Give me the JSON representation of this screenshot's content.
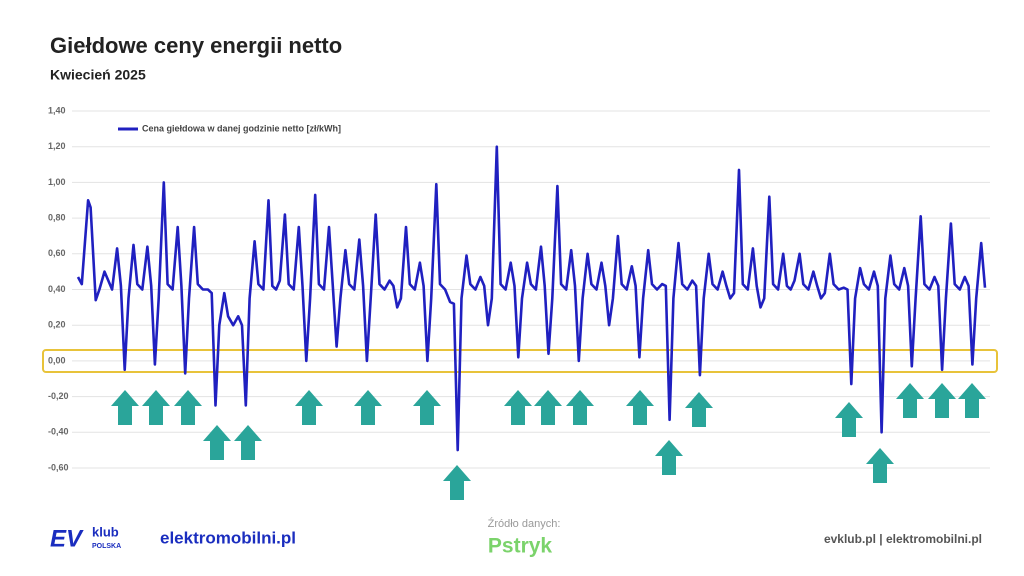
{
  "chart_data": {
    "type": "line",
    "title": "Giełdowe ceny energii netto",
    "subtitle": "Kwiecień 2025",
    "x": [
      0,
      3,
      8,
      10,
      14,
      17,
      21,
      27,
      31,
      34,
      37,
      40,
      44,
      47,
      51,
      55,
      58,
      61,
      64,
      68,
      71,
      75,
      79,
      82,
      85,
      88,
      92,
      95,
      99,
      103,
      106,
      109,
      112,
      116,
      119,
      123,
      127,
      130,
      133,
      136,
      140,
      143,
      147,
      151,
      154,
      157,
      160,
      164,
      167,
      171,
      175,
      178,
      181,
      184,
      188,
      191,
      195,
      199,
      202,
      205,
      208,
      212,
      215,
      219,
      223,
      226,
      229,
      232,
      236,
      239,
      243,
      247,
      250,
      253,
      256,
      260,
      263,
      267,
      271,
      274,
      277,
      280,
      284,
      287,
      291,
      295,
      298,
      301,
      304,
      308,
      311,
      315,
      319,
      322,
      325,
      328,
      332,
      335,
      339,
      343,
      346,
      349,
      352,
      356,
      359,
      363,
      367,
      370,
      373,
      376,
      380,
      383,
      387,
      391,
      394,
      397,
      400,
      404,
      407,
      411,
      415,
      418,
      421,
      424,
      428,
      431,
      435,
      439,
      442,
      445,
      448,
      452,
      455,
      459,
      463,
      466,
      469,
      472,
      476,
      479,
      483,
      487,
      490,
      493,
      496,
      500,
      503,
      507,
      511,
      514,
      517,
      520,
      524,
      527,
      531,
      535,
      538,
      541,
      544,
      548,
      551,
      555,
      559,
      562,
      565,
      568,
      572,
      575,
      579,
      583,
      586,
      589,
      592,
      596,
      599,
      603,
      607,
      610,
      613,
      616,
      620,
      623,
      627,
      631,
      634,
      637,
      640,
      644,
      647,
      651,
      655,
      658,
      661,
      664,
      668,
      671,
      675,
      679,
      682,
      685,
      688,
      692,
      695,
      699,
      703,
      706,
      709,
      712,
      716,
      719
    ],
    "series": [
      {
        "name": "Cena giełdowa w danej godzinie netto [zł/kWh]",
        "color": "#2020c0",
        "values": [
          0.47,
          0.43,
          0.9,
          0.86,
          0.34,
          0.4,
          0.5,
          0.4,
          0.63,
          0.42,
          -0.05,
          0.35,
          0.65,
          0.43,
          0.4,
          0.64,
          0.42,
          -0.02,
          0.35,
          1.0,
          0.43,
          0.4,
          0.75,
          0.42,
          -0.07,
          0.35,
          0.75,
          0.43,
          0.4,
          0.4,
          0.38,
          -0.25,
          0.2,
          0.38,
          0.25,
          0.2,
          0.25,
          0.2,
          -0.25,
          0.35,
          0.67,
          0.43,
          0.4,
          0.9,
          0.42,
          0.4,
          0.45,
          0.82,
          0.43,
          0.4,
          0.75,
          0.42,
          0.0,
          0.35,
          0.93,
          0.43,
          0.4,
          0.75,
          0.42,
          0.08,
          0.35,
          0.62,
          0.43,
          0.4,
          0.68,
          0.42,
          0.0,
          0.35,
          0.82,
          0.43,
          0.4,
          0.45,
          0.42,
          0.3,
          0.35,
          0.75,
          0.43,
          0.4,
          0.55,
          0.42,
          0.0,
          0.35,
          0.99,
          0.43,
          0.4,
          0.33,
          0.32,
          -0.5,
          0.35,
          0.59,
          0.43,
          0.4,
          0.47,
          0.42,
          0.2,
          0.35,
          1.2,
          0.43,
          0.4,
          0.55,
          0.42,
          0.02,
          0.35,
          0.55,
          0.43,
          0.4,
          0.64,
          0.42,
          0.04,
          0.35,
          0.98,
          0.43,
          0.4,
          0.62,
          0.42,
          0.0,
          0.35,
          0.6,
          0.43,
          0.4,
          0.55,
          0.42,
          0.2,
          0.35,
          0.7,
          0.43,
          0.4,
          0.53,
          0.42,
          0.02,
          0.35,
          0.62,
          0.43,
          0.4,
          0.43,
          0.42,
          -0.33,
          0.35,
          0.66,
          0.43,
          0.4,
          0.45,
          0.42,
          -0.08,
          0.35,
          0.6,
          0.43,
          0.4,
          0.5,
          0.42,
          0.35,
          0.38,
          1.07,
          0.43,
          0.4,
          0.63,
          0.42,
          0.3,
          0.35,
          0.92,
          0.43,
          0.4,
          0.6,
          0.42,
          0.4,
          0.45,
          0.6,
          0.43,
          0.4,
          0.5,
          0.42,
          0.35,
          0.38,
          0.6,
          0.43,
          0.4,
          0.41,
          0.4,
          -0.13,
          0.35,
          0.52,
          0.43,
          0.4,
          0.5,
          0.42,
          -0.4,
          0.35,
          0.59,
          0.43,
          0.4,
          0.52,
          0.42,
          -0.03,
          0.35,
          0.81,
          0.43,
          0.4,
          0.47,
          0.42,
          -0.05,
          0.35,
          0.77,
          0.43,
          0.4,
          0.47,
          0.42,
          -0.02,
          0.35,
          0.66,
          0.41
        ]
      }
    ],
    "xlim": [
      0,
      719
    ],
    "ylim": [
      -0.6,
      1.4
    ],
    "yticks": [
      {
        "value": -0.6,
        "label": "-0,60"
      },
      {
        "value": -0.4,
        "label": "-0,40"
      },
      {
        "value": -0.2,
        "label": "-0,20"
      },
      {
        "value": 0,
        "label": "0,00"
      },
      {
        "value": 0.2,
        "label": "0,20"
      },
      {
        "value": 0.4,
        "label": "0,40"
      },
      {
        "value": 0.6,
        "label": "0,60"
      },
      {
        "value": 0.8,
        "label": "0,80"
      },
      {
        "value": 1.0,
        "label": "1,00"
      },
      {
        "value": 1.2,
        "label": "1,20"
      },
      {
        "value": 1.4,
        "label": "1,40"
      }
    ],
    "grid": true,
    "legend": "top-left"
  },
  "footer": {
    "logo_ev": "EV",
    "logo_klub": "klub",
    "logo_polska": "POLSKA",
    "brand": "elektromobilni.pl",
    "source_label": "Źródło danych:",
    "source": "Pstryk",
    "links": "evklub.pl | elektromobilni.pl"
  }
}
